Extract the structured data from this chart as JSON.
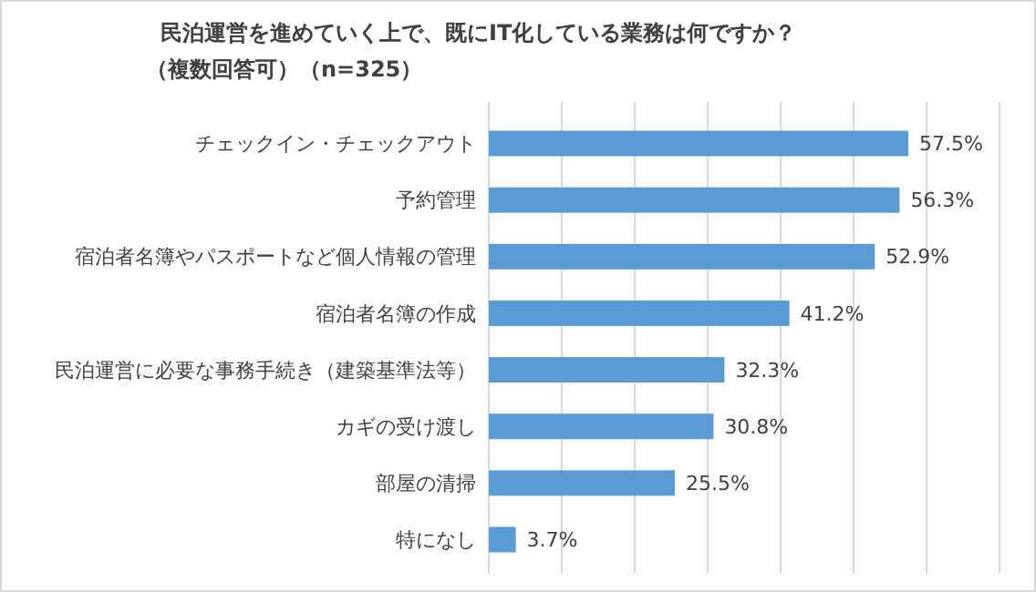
{
  "chart_data": {
    "type": "bar",
    "orientation": "horizontal",
    "title": "民泊運営を進めていく上で、既にIT化している業務は何ですか？",
    "subtitle": "（複数回答可）（n=325）",
    "categories": [
      "チェックイン・チェックアウト",
      "予約管理",
      "宿泊者名簿やパスポートなど個人情報の管理",
      "宿泊者名簿の作成",
      "民泊運営に必要な事務手続き（建築基準法等）",
      "カギの受け渡し",
      "部屋の清掃",
      "特になし"
    ],
    "values": [
      57.5,
      56.3,
      52.9,
      41.2,
      32.3,
      30.8,
      25.5,
      3.7
    ],
    "value_labels": [
      "57.5%",
      "56.3%",
      "52.9%",
      "41.2%",
      "32.3%",
      "30.8%",
      "25.5%",
      "3.7%"
    ],
    "color": "#5b9bd5",
    "xlim": [
      0,
      70
    ],
    "xticks": [
      {
        "value": 0,
        "label": null
      },
      {
        "value": 10,
        "label": null
      },
      {
        "value": 20,
        "label": null
      },
      {
        "value": 30,
        "label": null
      },
      {
        "value": 40,
        "label": null
      },
      {
        "value": 50,
        "label": null
      },
      {
        "value": 60,
        "label": null
      },
      {
        "value": 70,
        "label": null
      }
    ],
    "grid": "x",
    "tick_labels": "y"
  }
}
